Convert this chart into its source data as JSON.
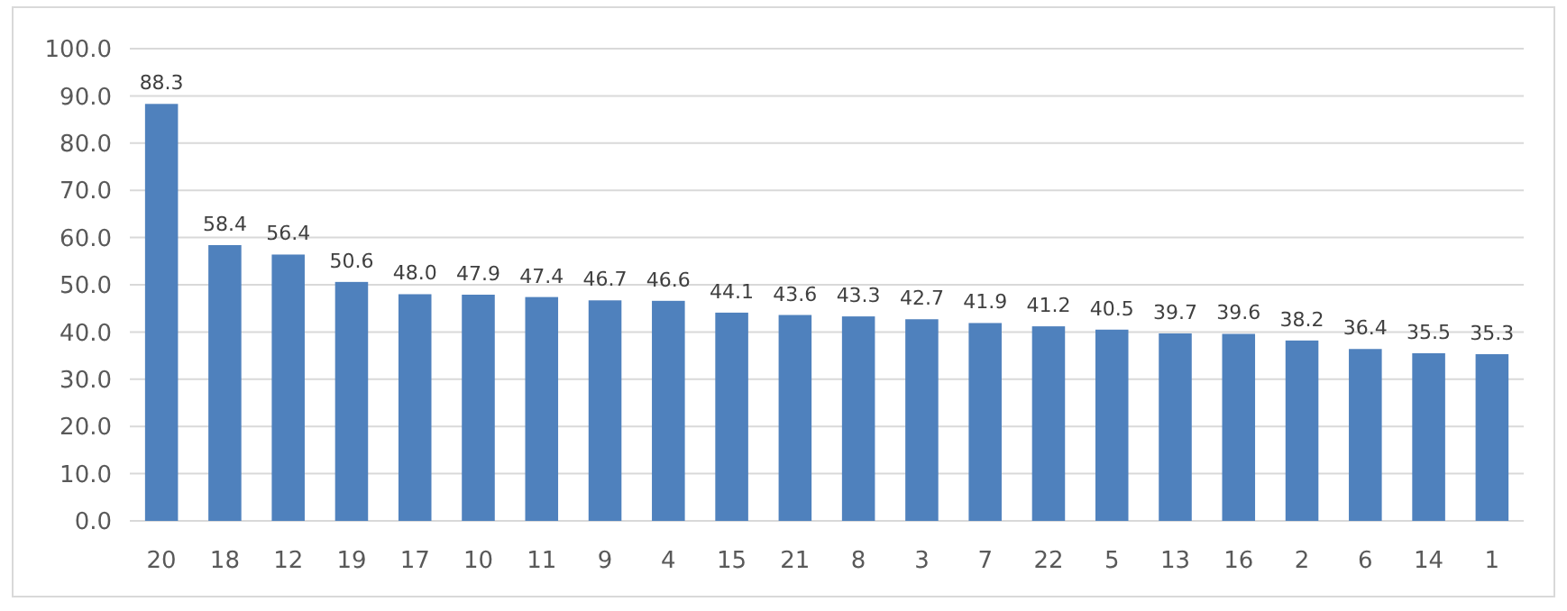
{
  "chart_data": {
    "type": "bar",
    "categories": [
      "20",
      "18",
      "12",
      "19",
      "17",
      "10",
      "11",
      "9",
      "4",
      "15",
      "21",
      "8",
      "3",
      "7",
      "22",
      "5",
      "13",
      "16",
      "2",
      "6",
      "14",
      "1"
    ],
    "values": [
      88.3,
      58.4,
      56.4,
      50.6,
      48.0,
      47.9,
      47.4,
      46.7,
      46.6,
      44.1,
      43.6,
      43.3,
      42.7,
      41.9,
      41.2,
      40.5,
      39.7,
      39.6,
      38.2,
      36.4,
      35.5,
      35.3
    ],
    "value_labels": [
      "88.3",
      "58.4",
      "56.4",
      "50.6",
      "48.0",
      "47.9",
      "47.4",
      "46.7",
      "46.6",
      "44.1",
      "43.6",
      "43.3",
      "42.7",
      "41.9",
      "41.2",
      "40.5",
      "39.7",
      "39.6",
      "38.2",
      "36.4",
      "35.5",
      "35.3"
    ],
    "color": "#4f81bd",
    "ylim": [
      0,
      100
    ],
    "yticks": [
      {
        "value": 0,
        "label": "0.0"
      },
      {
        "value": 10,
        "label": "10.0"
      },
      {
        "value": 20,
        "label": "20.0"
      },
      {
        "value": 30,
        "label": "30.0"
      },
      {
        "value": 40,
        "label": "40.0"
      },
      {
        "value": 50,
        "label": "50.0"
      },
      {
        "value": 60,
        "label": "60.0"
      },
      {
        "value": 70,
        "label": "70.0"
      },
      {
        "value": 80,
        "label": "80.0"
      },
      {
        "value": 90,
        "label": "90.0"
      },
      {
        "value": 100,
        "label": "100.0"
      }
    ],
    "grid": "y"
  }
}
